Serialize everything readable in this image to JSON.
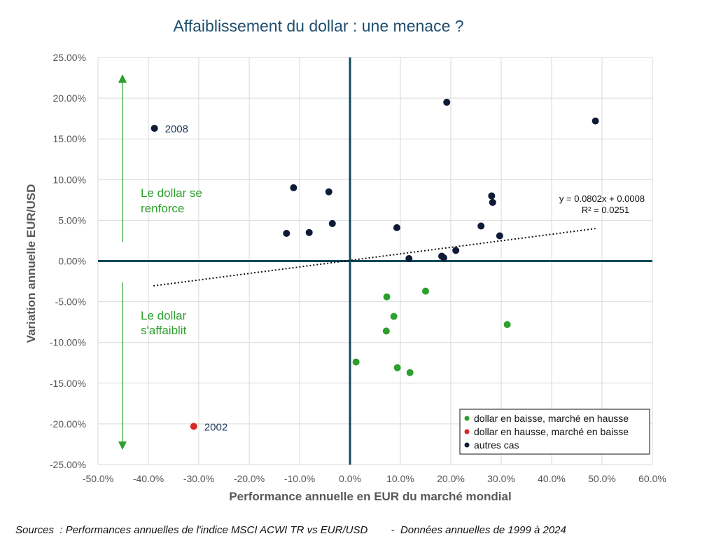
{
  "chart_data": {
    "type": "scatter",
    "title": "Affaiblissement du dollar : une menace ?",
    "xlabel": "Performance annuelle en EUR du marché mondial",
    "ylabel": "Variation annuelle EUR/USD",
    "xlim": [
      -0.5,
      0.6
    ],
    "ylim": [
      -0.25,
      0.25
    ],
    "x_ticks": [
      -0.5,
      -0.4,
      -0.3,
      -0.2,
      -0.1,
      0.0,
      0.1,
      0.2,
      0.3,
      0.4,
      0.5,
      0.6
    ],
    "x_tick_labels": [
      "-50.0%",
      "-40.0%",
      "-30.0%",
      "-20.0%",
      "-10.0%",
      "0.0%",
      "10.0%",
      "20.0%",
      "30.0%",
      "40.0%",
      "50.0%",
      "60.0%"
    ],
    "y_ticks": [
      0.25,
      0.2,
      0.15,
      0.1,
      0.05,
      0.0,
      -0.05,
      -0.1,
      -0.15,
      -0.2,
      -0.25
    ],
    "y_tick_labels": [
      "25.00%",
      "20.00%",
      "15.00%",
      "10.00%",
      "5.00%",
      "0.00%",
      "-5.00%",
      "-10.00%",
      "-15.00%",
      "-20.00%",
      "-25.00%"
    ],
    "grid": true,
    "legend_position": "bottom-right",
    "colors": {
      "green": "#2ca02c",
      "red": "#d62728",
      "navy": "#0f1a36",
      "axis": "#0f4a5c"
    },
    "series": [
      {
        "name": "dollar en baisse, marché en hausse",
        "color": "#2ca02c",
        "points": [
          {
            "x": 0.012,
            "y": -0.124
          },
          {
            "x": 0.073,
            "y": -0.044
          },
          {
            "x": 0.087,
            "y": -0.068
          },
          {
            "x": 0.072,
            "y": -0.086
          },
          {
            "x": 0.094,
            "y": -0.131
          },
          {
            "x": 0.119,
            "y": -0.137
          },
          {
            "x": 0.15,
            "y": -0.037
          },
          {
            "x": 0.312,
            "y": -0.078
          }
        ]
      },
      {
        "name": "dollar en hausse, marché en baisse",
        "color": "#d62728",
        "points": [
          {
            "x": -0.31,
            "y": -0.203,
            "label": "2002"
          }
        ]
      },
      {
        "name": "autres cas",
        "color": "#0f1a36",
        "points": [
          {
            "x": -0.388,
            "y": 0.163,
            "label": "2008"
          },
          {
            "x": -0.112,
            "y": 0.09
          },
          {
            "x": -0.042,
            "y": 0.085
          },
          {
            "x": -0.126,
            "y": 0.034
          },
          {
            "x": -0.081,
            "y": 0.035
          },
          {
            "x": -0.035,
            "y": 0.046
          },
          {
            "x": 0.093,
            "y": 0.041
          },
          {
            "x": 0.117,
            "y": 0.003
          },
          {
            "x": 0.182,
            "y": 0.006
          },
          {
            "x": 0.186,
            "y": 0.004
          },
          {
            "x": 0.192,
            "y": 0.195
          },
          {
            "x": 0.21,
            "y": 0.013
          },
          {
            "x": 0.26,
            "y": 0.043
          },
          {
            "x": 0.281,
            "y": 0.08
          },
          {
            "x": 0.283,
            "y": 0.072
          },
          {
            "x": 0.297,
            "y": 0.031
          },
          {
            "x": 0.487,
            "y": 0.172
          }
        ]
      }
    ],
    "trendline": {
      "slope": 0.0802,
      "intercept": 0.0008,
      "x_range": [
        -0.39,
        0.487
      ],
      "equation_text": "y = 0.0802x + 0.0008",
      "r2_text": "R² = 0.0251"
    },
    "annotations": {
      "upper_line1": "Le dollar se",
      "upper_line2": "renforce",
      "lower_line1": "Le dollar",
      "lower_line2": "s'affaiblit"
    }
  },
  "footer": {
    "source": "Sources  : Performances annuelles de l'indice MSCI ACWI TR vs EUR/USD        -  Données annuelles de 1999 à 2024"
  }
}
